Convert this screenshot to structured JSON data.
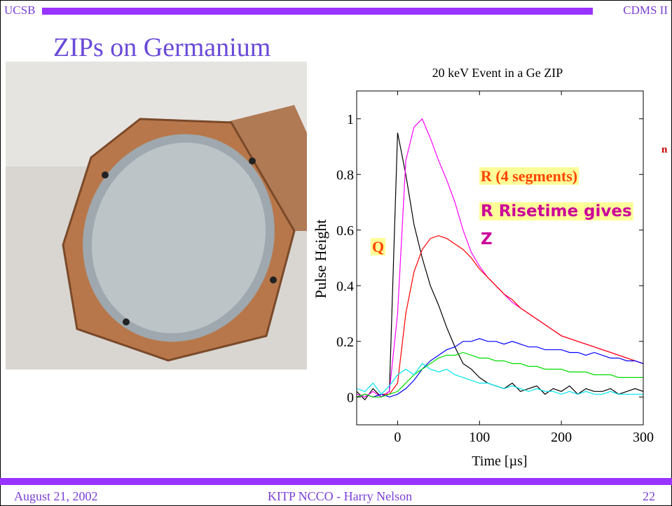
{
  "header": {
    "left": "UCSB",
    "right": "CDMS II"
  },
  "title": "ZIPs on Germanium",
  "chart_data": {
    "type": "line",
    "title": "20 keV Event in a Ge ZIP",
    "xlabel": "Time [µs]",
    "ylabel": "Pulse Height",
    "x": [
      -50,
      -40,
      -30,
      -20,
      -10,
      0,
      10,
      20,
      30,
      40,
      50,
      60,
      70,
      80,
      90,
      100,
      110,
      120,
      130,
      140,
      150,
      160,
      170,
      180,
      190,
      200,
      210,
      220,
      230,
      240,
      250,
      260,
      270,
      280,
      290,
      300
    ],
    "series": [
      {
        "color": "#000000",
        "values": [
          0.02,
          -0.01,
          0.03,
          0,
          0.02,
          0.95,
          0.8,
          0.62,
          0.5,
          0.4,
          0.33,
          0.25,
          0.18,
          0.12,
          0.1,
          0.07,
          0.05,
          0.04,
          0.03,
          0.05,
          0.02,
          0.03,
          0.04,
          0.01,
          0.03,
          0.02,
          0.04,
          0.01,
          0.03,
          0.02,
          0.02,
          0.03,
          0.01,
          0.02,
          0.03,
          0.02
        ]
      },
      {
        "color": "#ff00ff",
        "values": [
          0.01,
          0,
          0.02,
          0,
          0.02,
          0.3,
          0.85,
          0.97,
          1.0,
          0.93,
          0.85,
          0.78,
          0.7,
          0.6,
          0.52,
          0.47,
          0.43,
          0.4,
          0.37,
          0.34,
          0.32,
          0.3,
          0.28,
          0.26,
          0.24,
          0.22,
          0.21,
          0.2,
          0.19,
          0.18,
          0.17,
          0.16,
          0.15,
          0.14,
          0.13,
          0.12
        ]
      },
      {
        "color": "#ff0000",
        "values": [
          0,
          0.01,
          0,
          0.01,
          0.01,
          0.05,
          0.3,
          0.45,
          0.53,
          0.57,
          0.58,
          0.57,
          0.55,
          0.53,
          0.5,
          0.46,
          0.43,
          0.4,
          0.37,
          0.35,
          0.32,
          0.3,
          0.28,
          0.26,
          0.24,
          0.22,
          0.21,
          0.2,
          0.19,
          0.18,
          0.17,
          0.16,
          0.15,
          0.14,
          0.13,
          0.12
        ]
      },
      {
        "color": "#0000ff",
        "values": [
          0,
          0.01,
          0,
          0.01,
          0,
          0.01,
          0.03,
          0.06,
          0.1,
          0.13,
          0.15,
          0.17,
          0.18,
          0.2,
          0.2,
          0.21,
          0.2,
          0.2,
          0.19,
          0.2,
          0.19,
          0.18,
          0.18,
          0.17,
          0.17,
          0.17,
          0.16,
          0.16,
          0.15,
          0.16,
          0.15,
          0.14,
          0.14,
          0.13,
          0.13,
          0.12
        ]
      },
      {
        "color": "#00dd00",
        "values": [
          0,
          0.01,
          0,
          0,
          0.01,
          0.02,
          0.05,
          0.08,
          0.1,
          0.12,
          0.14,
          0.15,
          0.15,
          0.16,
          0.15,
          0.14,
          0.14,
          0.13,
          0.13,
          0.12,
          0.12,
          0.11,
          0.11,
          0.1,
          0.1,
          0.1,
          0.09,
          0.09,
          0.09,
          0.08,
          0.08,
          0.08,
          0.07,
          0.07,
          0.07,
          0.07
        ]
      },
      {
        "color": "#00e5ee",
        "values": [
          0.03,
          0.02,
          0.05,
          0.01,
          0.04,
          0.08,
          0.1,
          0.08,
          0.12,
          0.1,
          0.09,
          0.1,
          0.08,
          0.07,
          0.06,
          0.05,
          0.05,
          0.04,
          0.03,
          0.04,
          0.03,
          0.02,
          0.03,
          0.02,
          0.02,
          0.01,
          0.02,
          0.01,
          0.02,
          0.01,
          0.01,
          0.02,
          0.01,
          0.01,
          0.01,
          0.01
        ]
      }
    ],
    "xlim": [
      -50,
      300
    ],
    "xticks": [
      0,
      100,
      200,
      300
    ],
    "ylim": [
      -0.1,
      1.1
    ],
    "yticks": [
      0,
      0.2,
      0.4,
      0.6,
      0.8,
      1
    ],
    "annotations": [
      "R (4 segments)",
      "R  Risetime gives",
      "Z",
      "Q",
      "n"
    ]
  },
  "footer": {
    "date": "August 21, 2002",
    "venue": "KITP NCCO - Harry Nelson",
    "page": "22"
  }
}
